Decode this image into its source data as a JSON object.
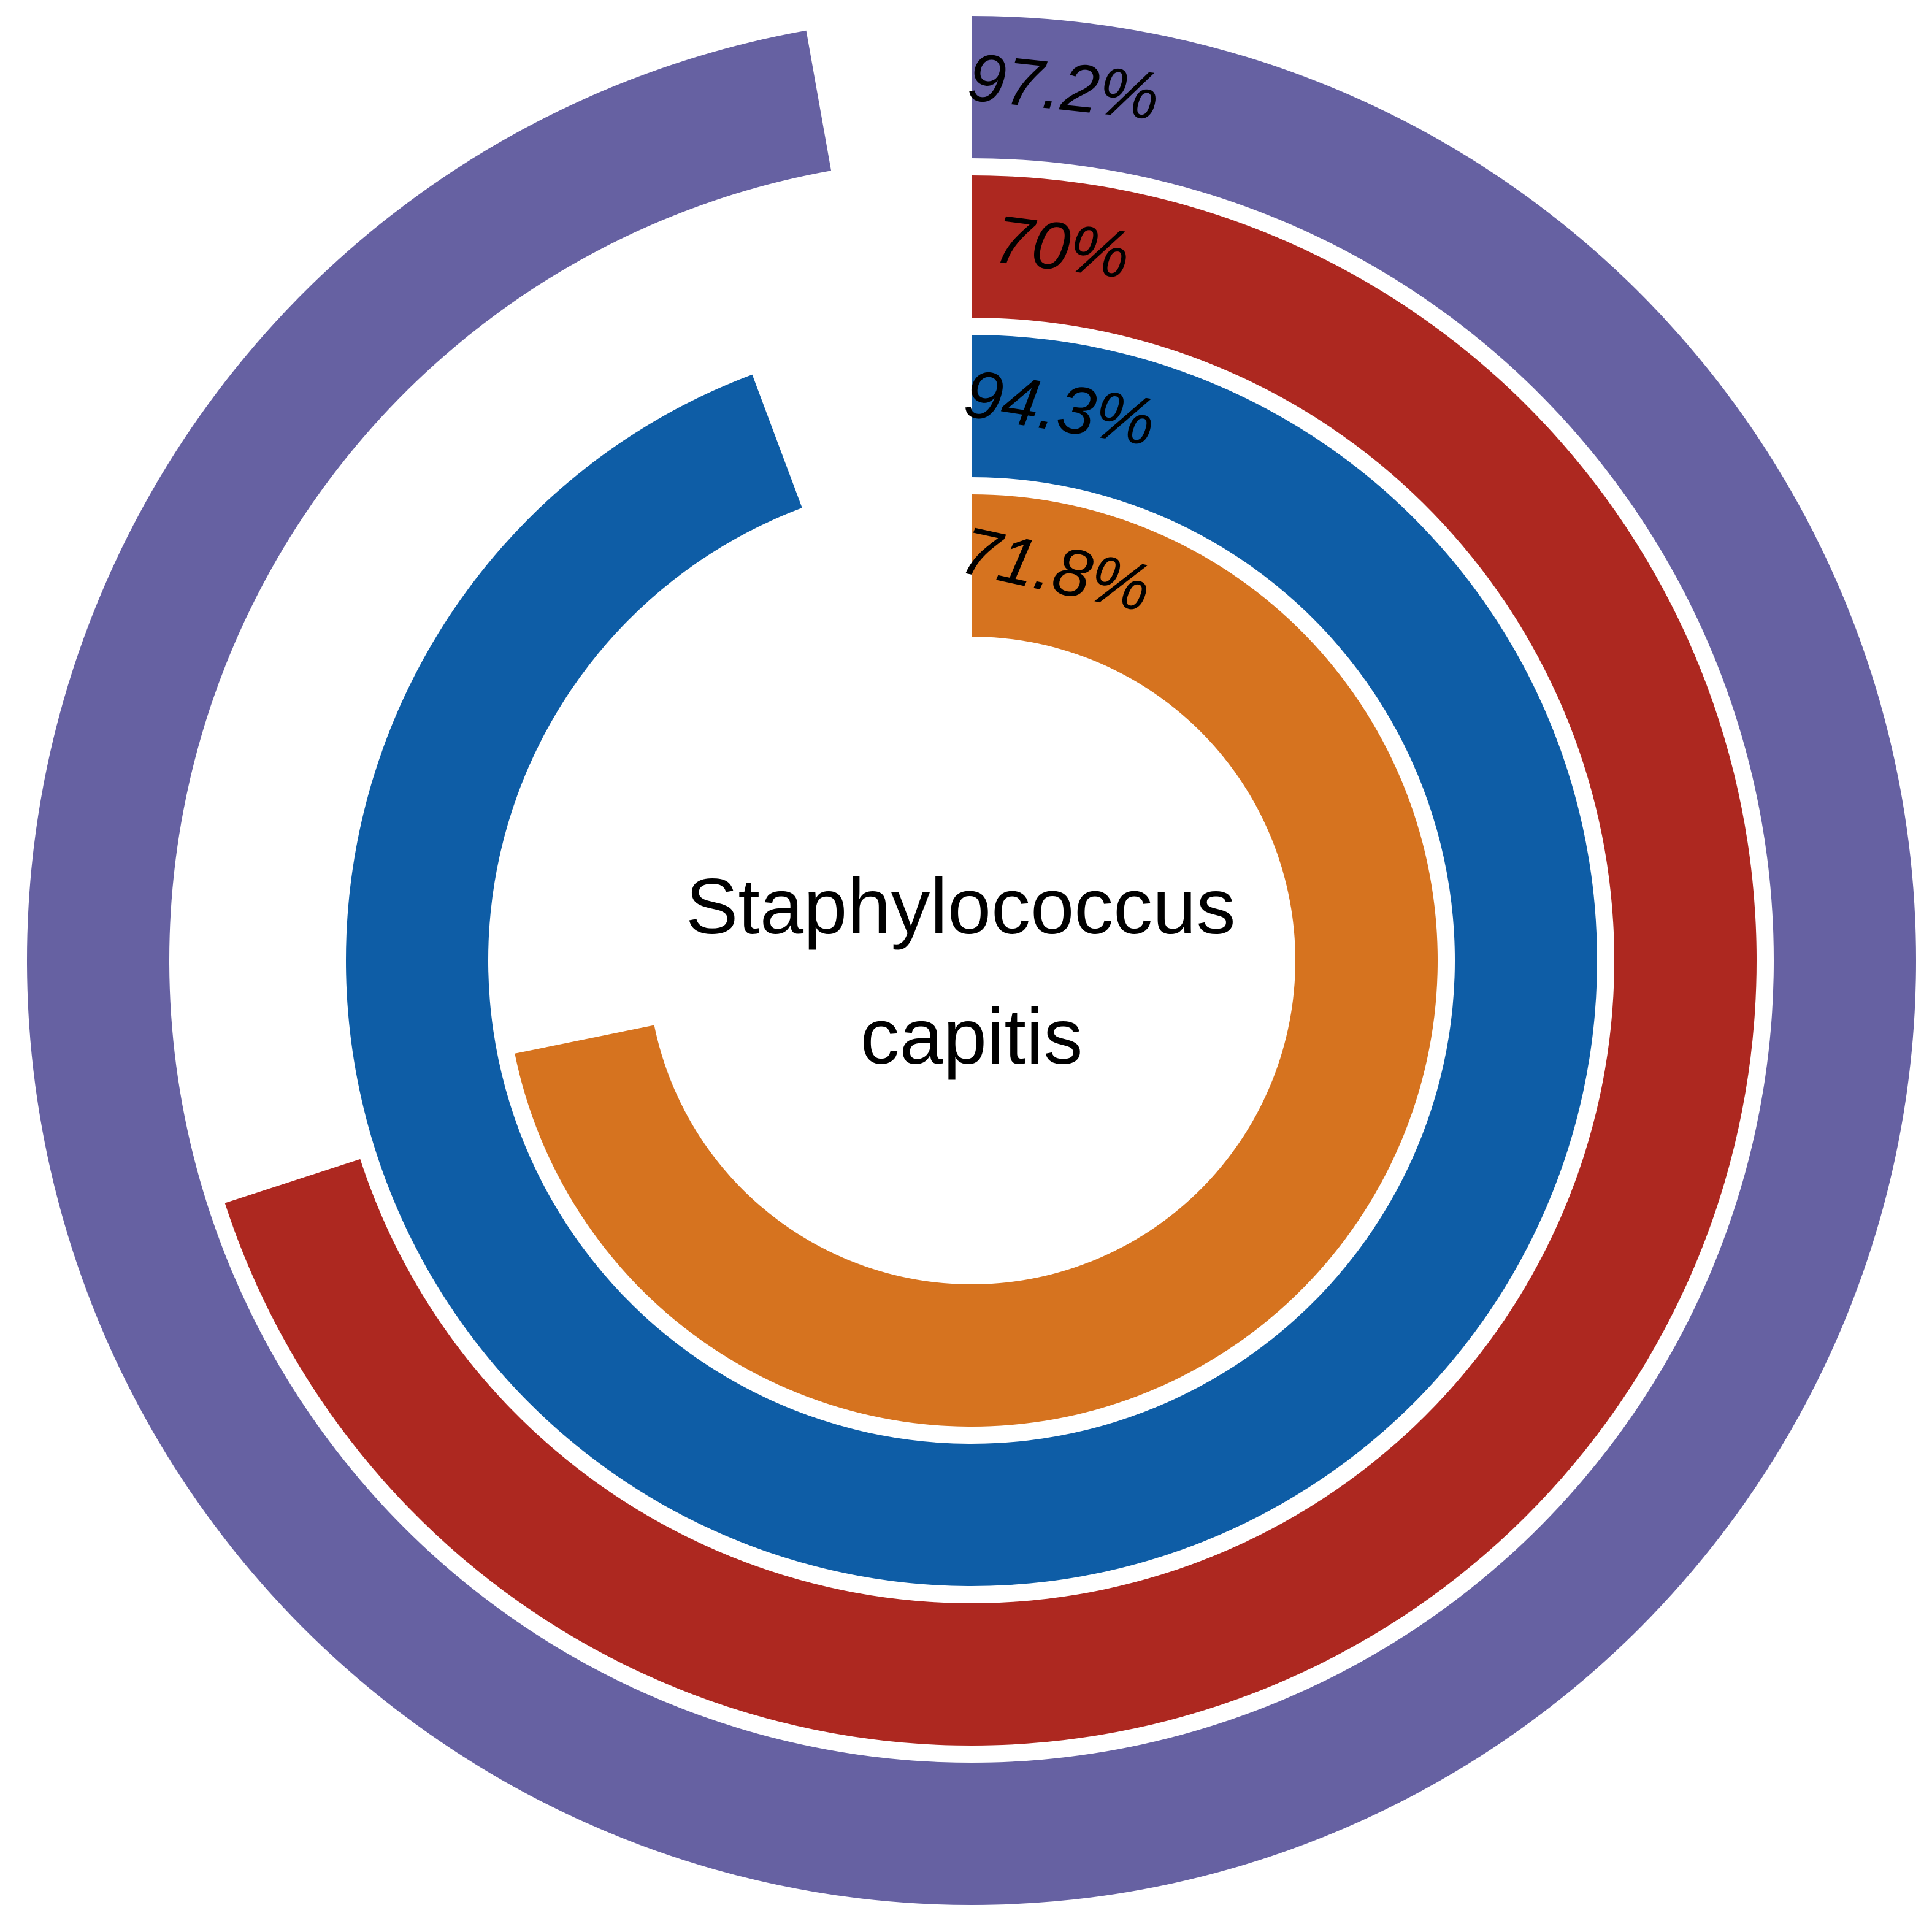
{
  "chart_data": {
    "type": "radial-bar",
    "center_label": [
      "Staphylococcus",
      "capitis"
    ],
    "max_value": 100,
    "series": [
      {
        "value": 97.2,
        "label": "97.2%",
        "color": "#6661a2"
      },
      {
        "value": 70,
        "label": "70%",
        "color": "#ad2820"
      },
      {
        "value": 94.3,
        "label": "94.3%",
        "color": "#0e5da6"
      },
      {
        "value": 71.8,
        "label": "71.8%",
        "color": "#d6731f"
      }
    ]
  }
}
